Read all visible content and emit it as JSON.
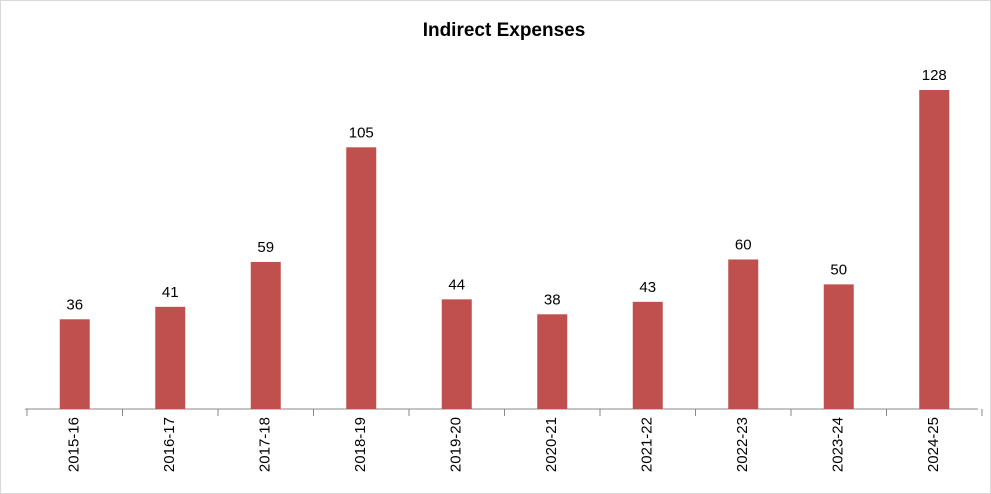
{
  "chart_data": {
    "type": "bar",
    "title": "Indirect Expenses",
    "categories": [
      "2015-16",
      "2016-17",
      "2017-18",
      "2018-19",
      "2019-20",
      "2020-21",
      "2021-22",
      "2022-23",
      "2023-24",
      "2024-25"
    ],
    "values": [
      36,
      41,
      59,
      105,
      44,
      38,
      43,
      60,
      50,
      128
    ],
    "color": "#c0504d"
  }
}
